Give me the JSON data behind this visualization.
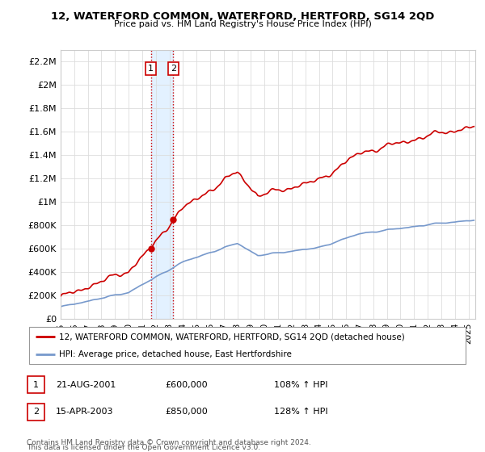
{
  "title": "12, WATERFORD COMMON, WATERFORD, HERTFORD, SG14 2QD",
  "subtitle": "Price paid vs. HM Land Registry's House Price Index (HPI)",
  "ylim": [
    0,
    2300000
  ],
  "yticks": [
    0,
    200000,
    400000,
    600000,
    800000,
    1000000,
    1200000,
    1400000,
    1600000,
    1800000,
    2000000,
    2200000
  ],
  "ytick_labels": [
    "£0",
    "£200K",
    "£400K",
    "£600K",
    "£800K",
    "£1M",
    "£1.2M",
    "£1.4M",
    "£1.6M",
    "£1.8M",
    "£2M",
    "£2.2M"
  ],
  "xlim_start": 1995.0,
  "xlim_end": 2025.5,
  "sale1_x": 2001.639,
  "sale1_y": 600000,
  "sale2_x": 2003.288,
  "sale2_y": 850000,
  "sale1_label": "1",
  "sale2_label": "2",
  "transaction_color": "#cc0000",
  "hpi_color": "#7799cc",
  "legend_line1": "12, WATERFORD COMMON, WATERFORD, HERTFORD, SG14 2QD (detached house)",
  "legend_line2": "HPI: Average price, detached house, East Hertfordshire",
  "annotation1_num": "1",
  "annotation1_date": "21-AUG-2001",
  "annotation1_price": "£600,000",
  "annotation1_hpi": "108% ↑ HPI",
  "annotation2_num": "2",
  "annotation2_date": "15-APR-2003",
  "annotation2_price": "£850,000",
  "annotation2_hpi": "128% ↑ HPI",
  "footnote1": "Contains HM Land Registry data © Crown copyright and database right 2024.",
  "footnote2": "This data is licensed under the Open Government Licence v3.0.",
  "bg_color": "#ffffff",
  "grid_color": "#dddddd",
  "shaded_region_color": "#ddeeff"
}
